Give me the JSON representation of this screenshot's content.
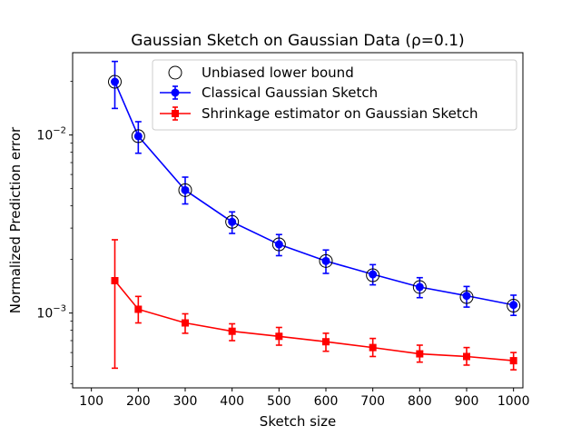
{
  "chart_data": {
    "type": "line",
    "title": "Gaussian Sketch on Gaussian Data (ρ=0.1)",
    "xlabel": "Sketch size",
    "ylabel": "Normalized Prediction error",
    "xlim": [
      60,
      1020
    ],
    "ylim": [
      0.00038,
      0.029
    ],
    "yscale": "log",
    "grid": false,
    "legend_position": "top-right",
    "x_ticks": [
      100,
      200,
      300,
      400,
      500,
      600,
      700,
      800,
      900,
      1000
    ],
    "x_tick_labels": [
      "100",
      "200",
      "300",
      "400",
      "500",
      "600",
      "700",
      "800",
      "900",
      "1000"
    ],
    "y_major_ticks": [
      0.001,
      0.01
    ],
    "y_tick_labels": [
      {
        "value": 0.01,
        "base": "10",
        "exp": "−2"
      },
      {
        "value": 0.001,
        "base": "10",
        "exp": "−3"
      }
    ],
    "y_minor_ticks": [
      0.0004,
      0.0005,
      0.0006,
      0.0007,
      0.0008,
      0.0009,
      0.002,
      0.003,
      0.004,
      0.005,
      0.006,
      0.007,
      0.008,
      0.009,
      0.02
    ],
    "series": [
      {
        "name": "Unbiased lower bound",
        "style": "open-circle",
        "color": "#000000",
        "x": [
          150,
          200,
          300,
          400,
          500,
          600,
          700,
          800,
          900,
          1000
        ],
        "y": [
          0.0199,
          0.00985,
          0.0049,
          0.00325,
          0.00243,
          0.00196,
          0.00163,
          0.0014,
          0.00123,
          0.0011
        ]
      },
      {
        "name": "Classical Gaussian Sketch",
        "style": "line-circle-errorbar",
        "color": "#0000ff",
        "x": [
          150,
          200,
          300,
          400,
          500,
          600,
          700,
          800,
          900,
          1000
        ],
        "y": [
          0.0199,
          0.00985,
          0.0049,
          0.00325,
          0.00243,
          0.00196,
          0.00165,
          0.0014,
          0.00125,
          0.00111
        ],
        "err_low": [
          0.0141,
          0.0079,
          0.0041,
          0.0028,
          0.0021,
          0.00167,
          0.00144,
          0.00122,
          0.00108,
          0.00097
        ],
        "err_high": [
          0.0259,
          0.01188,
          0.0058,
          0.0037,
          0.00276,
          0.00226,
          0.00187,
          0.00158,
          0.00141,
          0.00126
        ]
      },
      {
        "name": "Shrinkage estimator on Gaussian Sketch",
        "style": "line-square-errorbar",
        "color": "#ff0000",
        "x": [
          150,
          200,
          300,
          400,
          500,
          600,
          700,
          800,
          900,
          1000
        ],
        "y": [
          0.00152,
          0.00105,
          0.00088,
          0.00079,
          0.00074,
          0.00069,
          0.00064,
          0.00059,
          0.00057,
          0.00054
        ],
        "err_low": [
          0.00049,
          0.00088,
          0.00077,
          0.0007,
          0.00066,
          0.00061,
          0.00057,
          0.00053,
          0.00051,
          0.00048
        ],
        "err_high": [
          0.00258,
          0.00124,
          0.00099,
          0.00087,
          0.00083,
          0.00077,
          0.00072,
          0.00066,
          0.00064,
          0.0006
        ]
      }
    ]
  }
}
